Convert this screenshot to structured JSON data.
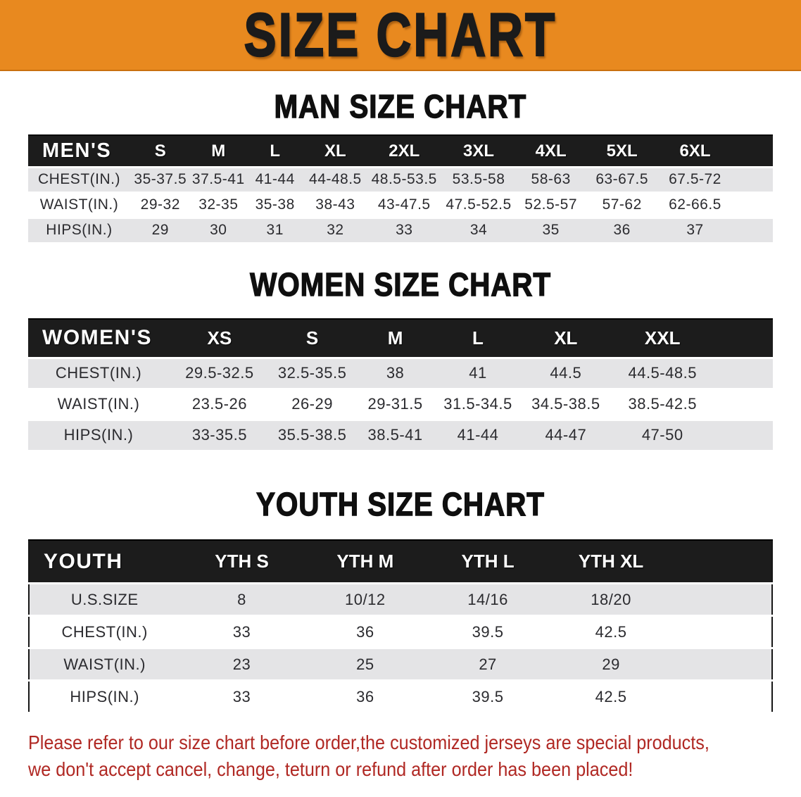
{
  "banner": {
    "title": "SIZE CHART",
    "bg_color": "#e8891f"
  },
  "sections": [
    {
      "heading": "MAN SIZE CHART",
      "header": [
        "MEN'S",
        "S",
        "M",
        "L",
        "XL",
        "2XL",
        "3XL",
        "4XL",
        "5XL",
        "6XL"
      ],
      "rows": [
        [
          "CHEST(IN.)",
          "35-37.5",
          "37.5-41",
          "41-44",
          "44-48.5",
          "48.5-53.5",
          "53.5-58",
          "58-63",
          "63-67.5",
          "67.5-72"
        ],
        [
          "WAIST(IN.)",
          "29-32",
          "32-35",
          "35-38",
          "38-43",
          "43-47.5",
          "47.5-52.5",
          "52.5-57",
          "57-62",
          "62-66.5"
        ],
        [
          "HIPS(IN.)",
          "29",
          "30",
          "31",
          "32",
          "33",
          "34",
          "35",
          "36",
          "37"
        ]
      ]
    },
    {
      "heading": "WOMEN SIZE CHART",
      "header": [
        "WOMEN'S",
        "XS",
        "S",
        "M",
        "L",
        "XL",
        "XXL"
      ],
      "rows": [
        [
          "CHEST(IN.)",
          "29.5-32.5",
          "32.5-35.5",
          "38",
          "41",
          "44.5",
          "44.5-48.5"
        ],
        [
          "WAIST(IN.)",
          "23.5-26",
          "26-29",
          "29-31.5",
          "31.5-34.5",
          "34.5-38.5",
          "38.5-42.5"
        ],
        [
          "HIPS(IN.)",
          "33-35.5",
          "35.5-38.5",
          "38.5-41",
          "41-44",
          "44-47",
          "47-50"
        ]
      ]
    },
    {
      "heading": "YOUTH SIZE CHART",
      "header": [
        "YOUTH",
        "YTH S",
        "YTH M",
        "YTH L",
        "YTH XL"
      ],
      "rows": [
        [
          "U.S.SIZE",
          "8",
          "10/12",
          "14/16",
          "18/20"
        ],
        [
          "CHEST(IN.)",
          "33",
          "36",
          "39.5",
          "42.5"
        ],
        [
          "WAIST(IN.)",
          "23",
          "25",
          "27",
          "29"
        ],
        [
          "HIPS(IN.)",
          "33",
          "36",
          "39.5",
          "42.5"
        ]
      ]
    }
  ],
  "note": {
    "line1": "Please refer to our size chart before order,the customized jerseys are special products,",
    "line2": "we don't accept cancel, change, teturn or refund after order has been placed!",
    "color": "#b02823"
  },
  "colors": {
    "banner_bg": "#e8891f",
    "table_header_bg": "#1c1c1c",
    "row_alt": "#e4e4e6"
  }
}
